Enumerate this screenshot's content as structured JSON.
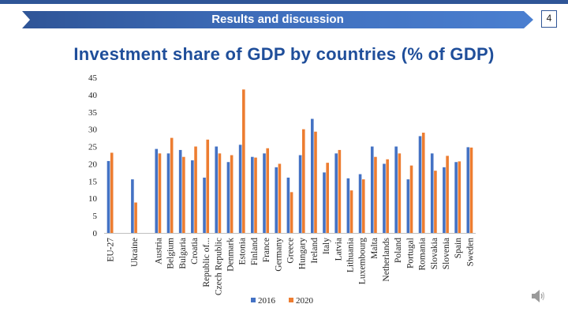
{
  "slide": {
    "header": "Results and discussion",
    "page_number": "4",
    "title": "Investment share of GDP by countries (% of GDP)",
    "colors": {
      "accent": "#2f5597",
      "banner_start": "#2f5597",
      "banner_end": "#4a7fd0",
      "title": "#1f4e9a"
    }
  },
  "chart_data": {
    "type": "bar",
    "title": "",
    "xlabel": "",
    "ylabel": "",
    "ylim": [
      0,
      45
    ],
    "yticks": [
      0,
      5,
      10,
      15,
      20,
      25,
      30,
      35,
      40,
      45
    ],
    "grid": false,
    "legend_position": "bottom",
    "colors": {
      "2016": "#4472c4",
      "2020": "#ed7d31"
    },
    "categories": [
      "EU-27",
      "",
      "Ukraine",
      "",
      "Austria",
      "Belgium",
      "Bulgaria",
      "Croatia",
      "Republic of...",
      "Czech Republic",
      "Denmark",
      "Estonia",
      "Finland",
      "France",
      "Germany",
      "Greece",
      "Hungary",
      "Ireland",
      "Italy",
      "Latvia",
      "Lithuania",
      "Luxembourg",
      "Malta",
      "Netherlands",
      "Poland",
      "Portugal",
      "Romania",
      "Slovakia",
      "Slovenia",
      "Spain",
      "Sweden"
    ],
    "series": [
      {
        "name": "2016",
        "values": [
          20.8,
          null,
          15.5,
          null,
          24.3,
          23.0,
          24.0,
          21.0,
          16.0,
          25.0,
          20.5,
          25.5,
          22.0,
          23.0,
          19.0,
          16.0,
          22.5,
          33.0,
          17.5,
          23.0,
          15.8,
          17.0,
          25.0,
          20.0,
          25.0,
          15.5,
          28.0,
          23.0,
          19.0,
          20.5,
          24.8
        ]
      },
      {
        "name": "2020",
        "values": [
          23.2,
          null,
          8.8,
          null,
          23.0,
          27.5,
          22.0,
          25.0,
          27.0,
          23.0,
          22.5,
          41.5,
          21.8,
          24.5,
          20.0,
          11.8,
          30.0,
          29.3,
          20.3,
          24.0,
          12.3,
          15.5,
          22.0,
          21.3,
          23.0,
          19.5,
          29.0,
          18.0,
          22.3,
          20.7,
          24.7
        ]
      }
    ]
  }
}
